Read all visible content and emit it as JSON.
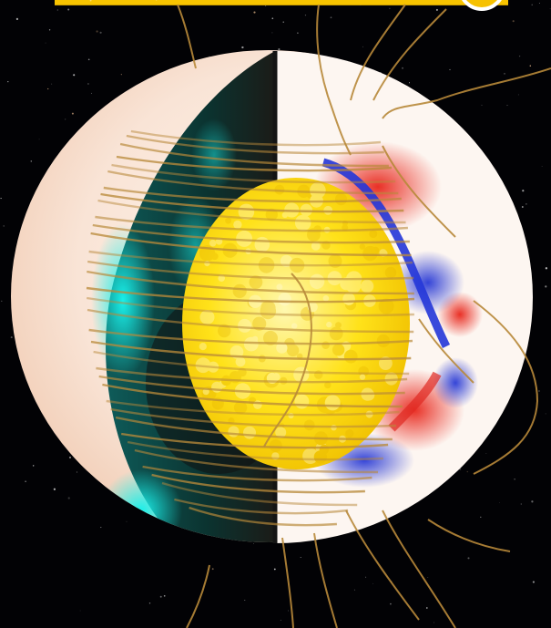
{
  "scene": {
    "subject": "star-cutaway-visualization",
    "palette": {
      "space": "#020205",
      "surface": "#f9e4d6",
      "core": "#ffe21a",
      "teal": "#15d7d2",
      "positive": "#e8261b",
      "negative": "#2a3bd6",
      "field_lines": "#b8893a",
      "banner": "#f8c400"
    }
  }
}
